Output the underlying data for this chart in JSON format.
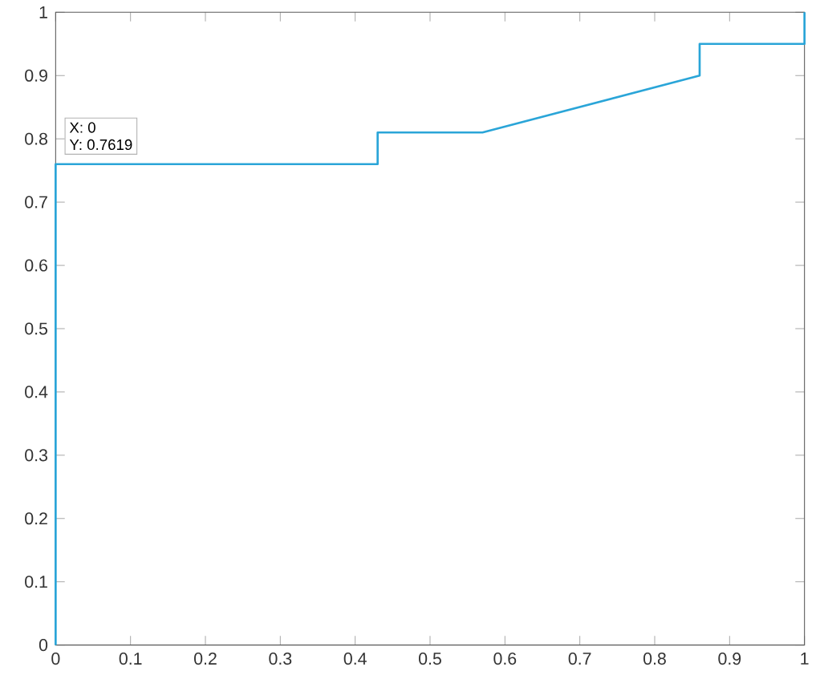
{
  "chart_data": {
    "type": "line",
    "series": [
      {
        "color": "#2aa5d8",
        "x": [
          0,
          0,
          0.43,
          0.43,
          0.57,
          0.86,
          0.86,
          1,
          1
        ],
        "values": [
          0,
          0.76,
          0.76,
          0.81,
          0.81,
          0.9,
          0.95,
          0.95,
          1
        ]
      }
    ],
    "xlim": [
      0,
      1
    ],
    "ylim": [
      0,
      1
    ],
    "xticks": [
      0,
      0.1,
      0.2,
      0.3,
      0.4,
      0.5,
      0.6,
      0.7,
      0.8,
      0.9,
      1
    ],
    "yticks": [
      0,
      0.1,
      0.2,
      0.3,
      0.4,
      0.5,
      0.6,
      0.7,
      0.8,
      0.9,
      1
    ],
    "grid": false,
    "marker": "none",
    "line_style": "solid",
    "annotations": [
      "X: 0",
      "Y: 0.7619"
    ]
  }
}
